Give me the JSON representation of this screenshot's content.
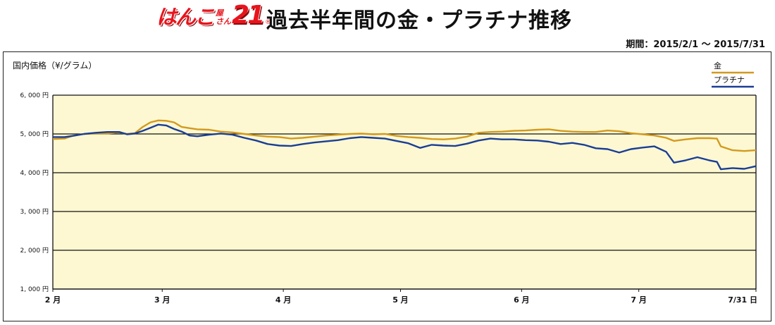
{
  "header": {
    "logo_main": "はんこ",
    "logo_small_1": "屋",
    "logo_small_2": "さん",
    "logo_num": "21",
    "logo_reg": "®",
    "title": "過去半年間の金・プラチナ推移",
    "period": "期間：2015/2/1 〜 2015/7/31"
  },
  "colors": {
    "plot_background": "#fdf8d2",
    "gold": "#d29a1e",
    "platinum": "#1a3e96",
    "grid": "#111111"
  },
  "chart_data": {
    "type": "line",
    "ylabel": "国内価格（¥/グラム）",
    "ylim": [
      1000,
      6000
    ],
    "yticks": [
      {
        "value": 6000,
        "label": "6, 000 円"
      },
      {
        "value": 5000,
        "label": "5, 000 円"
      },
      {
        "value": 4000,
        "label": "4, 000 円"
      },
      {
        "value": 3000,
        "label": "3, 000 円"
      },
      {
        "value": 2000,
        "label": "2, 000 円"
      },
      {
        "value": 1000,
        "label": "1, 000 円"
      }
    ],
    "xlim": [
      "2015-02-01",
      "2015-07-31"
    ],
    "xticks": [
      {
        "date": "2015-02-01",
        "label": "2 月"
      },
      {
        "date": "2015-03-01",
        "label": "3 月"
      },
      {
        "date": "2015-04-01",
        "label": "4 月"
      },
      {
        "date": "2015-05-01",
        "label": "5 月"
      },
      {
        "date": "2015-06-01",
        "label": "6 月"
      },
      {
        "date": "2015-07-01",
        "label": "7 月"
      },
      {
        "date": "2015-07-31",
        "label": "7/31 日"
      }
    ],
    "grid": "horizontal",
    "legend_position": "top-right",
    "series": [
      {
        "name": "金",
        "color": "#d29a1e",
        "points": [
          [
            "2015-02-01",
            4870
          ],
          [
            "2015-02-04",
            4880
          ],
          [
            "2015-02-06",
            4950
          ],
          [
            "2015-02-09",
            5000
          ],
          [
            "2015-02-12",
            5010
          ],
          [
            "2015-02-15",
            5010
          ],
          [
            "2015-02-18",
            5040
          ],
          [
            "2015-02-20",
            5000
          ],
          [
            "2015-02-22",
            5020
          ],
          [
            "2015-02-24",
            5180
          ],
          [
            "2015-02-26",
            5300
          ],
          [
            "2015-02-28",
            5350
          ],
          [
            "2015-03-02",
            5340
          ],
          [
            "2015-03-04",
            5300
          ],
          [
            "2015-03-06",
            5180
          ],
          [
            "2015-03-08",
            5150
          ],
          [
            "2015-03-10",
            5120
          ],
          [
            "2015-03-13",
            5110
          ],
          [
            "2015-03-16",
            5060
          ],
          [
            "2015-03-19",
            5040
          ],
          [
            "2015-03-22",
            5000
          ],
          [
            "2015-03-25",
            4960
          ],
          [
            "2015-03-28",
            4930
          ],
          [
            "2015-03-31",
            4920
          ],
          [
            "2015-04-03",
            4880
          ],
          [
            "2015-04-06",
            4900
          ],
          [
            "2015-04-09",
            4930
          ],
          [
            "2015-04-12",
            4960
          ],
          [
            "2015-04-15",
            4980
          ],
          [
            "2015-04-18",
            5000
          ],
          [
            "2015-04-21",
            5010
          ],
          [
            "2015-04-24",
            4990
          ],
          [
            "2015-04-27",
            5000
          ],
          [
            "2015-04-30",
            4950
          ],
          [
            "2015-05-03",
            4920
          ],
          [
            "2015-05-06",
            4900
          ],
          [
            "2015-05-09",
            4870
          ],
          [
            "2015-05-12",
            4860
          ],
          [
            "2015-05-15",
            4880
          ],
          [
            "2015-05-18",
            4930
          ],
          [
            "2015-05-21",
            5030
          ],
          [
            "2015-05-24",
            5050
          ],
          [
            "2015-05-27",
            5060
          ],
          [
            "2015-05-30",
            5080
          ],
          [
            "2015-06-02",
            5090
          ],
          [
            "2015-06-05",
            5110
          ],
          [
            "2015-06-08",
            5120
          ],
          [
            "2015-06-11",
            5080
          ],
          [
            "2015-06-14",
            5060
          ],
          [
            "2015-06-17",
            5050
          ],
          [
            "2015-06-20",
            5050
          ],
          [
            "2015-06-23",
            5090
          ],
          [
            "2015-06-26",
            5070
          ],
          [
            "2015-06-29",
            5020
          ],
          [
            "2015-07-02",
            4990
          ],
          [
            "2015-07-05",
            4960
          ],
          [
            "2015-07-08",
            4900
          ],
          [
            "2015-07-10",
            4820
          ],
          [
            "2015-07-13",
            4860
          ],
          [
            "2015-07-16",
            4890
          ],
          [
            "2015-07-19",
            4890
          ],
          [
            "2015-07-21",
            4880
          ],
          [
            "2015-07-22",
            4680
          ],
          [
            "2015-07-25",
            4580
          ],
          [
            "2015-07-28",
            4560
          ],
          [
            "2015-07-31",
            4580
          ]
        ]
      },
      {
        "name": "プラチナ",
        "color": "#1a3e96",
        "points": [
          [
            "2015-02-01",
            4920
          ],
          [
            "2015-02-04",
            4920
          ],
          [
            "2015-02-06",
            4950
          ],
          [
            "2015-02-09",
            5000
          ],
          [
            "2015-02-12",
            5030
          ],
          [
            "2015-02-15",
            5050
          ],
          [
            "2015-02-18",
            5050
          ],
          [
            "2015-02-20",
            4990
          ],
          [
            "2015-02-22",
            5010
          ],
          [
            "2015-02-24",
            5080
          ],
          [
            "2015-02-26",
            5160
          ],
          [
            "2015-02-28",
            5240
          ],
          [
            "2015-03-02",
            5220
          ],
          [
            "2015-03-04",
            5130
          ],
          [
            "2015-03-06",
            5060
          ],
          [
            "2015-03-08",
            4960
          ],
          [
            "2015-03-10",
            4940
          ],
          [
            "2015-03-13",
            4980
          ],
          [
            "2015-03-16",
            5010
          ],
          [
            "2015-03-19",
            4980
          ],
          [
            "2015-03-22",
            4900
          ],
          [
            "2015-03-25",
            4830
          ],
          [
            "2015-03-28",
            4740
          ],
          [
            "2015-03-31",
            4700
          ],
          [
            "2015-04-03",
            4690
          ],
          [
            "2015-04-06",
            4740
          ],
          [
            "2015-04-09",
            4780
          ],
          [
            "2015-04-12",
            4810
          ],
          [
            "2015-04-15",
            4840
          ],
          [
            "2015-04-18",
            4890
          ],
          [
            "2015-04-21",
            4920
          ],
          [
            "2015-04-24",
            4900
          ],
          [
            "2015-04-27",
            4880
          ],
          [
            "2015-04-30",
            4820
          ],
          [
            "2015-05-03",
            4760
          ],
          [
            "2015-05-06",
            4640
          ],
          [
            "2015-05-09",
            4720
          ],
          [
            "2015-05-12",
            4700
          ],
          [
            "2015-05-15",
            4690
          ],
          [
            "2015-05-18",
            4750
          ],
          [
            "2015-05-21",
            4830
          ],
          [
            "2015-05-24",
            4880
          ],
          [
            "2015-05-27",
            4860
          ],
          [
            "2015-05-30",
            4860
          ],
          [
            "2015-06-02",
            4840
          ],
          [
            "2015-06-05",
            4830
          ],
          [
            "2015-06-08",
            4800
          ],
          [
            "2015-06-11",
            4740
          ],
          [
            "2015-06-14",
            4770
          ],
          [
            "2015-06-17",
            4720
          ],
          [
            "2015-06-20",
            4630
          ],
          [
            "2015-06-23",
            4610
          ],
          [
            "2015-06-26",
            4520
          ],
          [
            "2015-06-29",
            4610
          ],
          [
            "2015-07-02",
            4650
          ],
          [
            "2015-07-05",
            4680
          ],
          [
            "2015-07-08",
            4540
          ],
          [
            "2015-07-10",
            4260
          ],
          [
            "2015-07-13",
            4320
          ],
          [
            "2015-07-16",
            4400
          ],
          [
            "2015-07-19",
            4320
          ],
          [
            "2015-07-21",
            4280
          ],
          [
            "2015-07-22",
            4090
          ],
          [
            "2015-07-25",
            4120
          ],
          [
            "2015-07-28",
            4100
          ],
          [
            "2015-07-31",
            4170
          ]
        ]
      }
    ]
  }
}
